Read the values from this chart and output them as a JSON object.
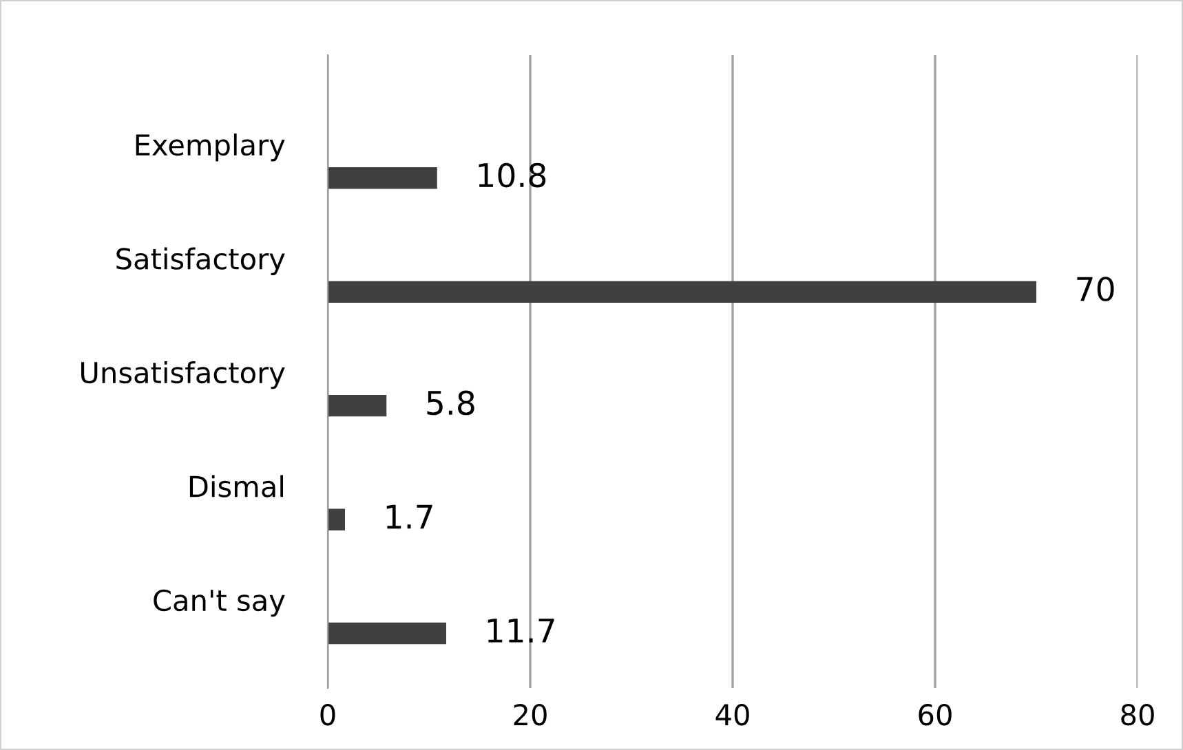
{
  "chart_data": {
    "type": "bar",
    "orientation": "horizontal",
    "categories": [
      "Exemplary",
      "Satisfactory",
      "Unsatisfactory",
      "Dismal",
      "Can't say"
    ],
    "values": [
      10.8,
      70,
      5.8,
      1.7,
      11.7
    ],
    "color": "#404040",
    "xlim": [
      0,
      80
    ],
    "xticks": [
      0,
      20,
      40,
      60,
      80
    ],
    "grid": "x",
    "data_labels": true
  }
}
